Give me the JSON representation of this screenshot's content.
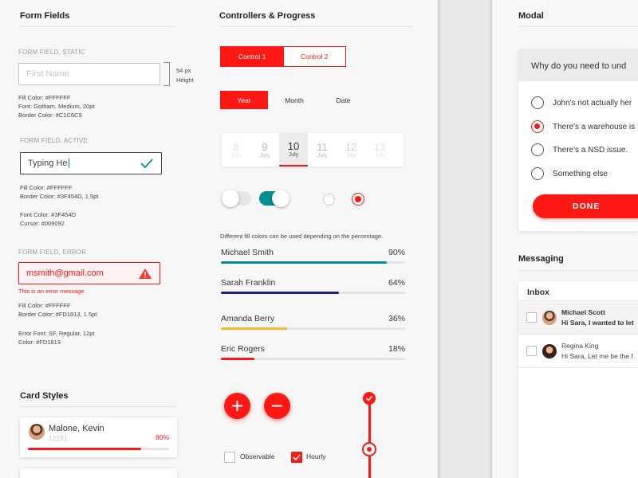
{
  "form_fields": {
    "title": "Form Fields",
    "static": {
      "caption": "FORM FIELD, STATIC",
      "placeholder": "First Name",
      "height_note": "54 px\nHeight",
      "spec": "Fill Color: #FFFFFF\nFont: Gotham, Medium, 20pt\nBorder Color: #C1C6C9"
    },
    "active": {
      "caption": "FORM FIELD, ACTIVE",
      "value": "Typing He",
      "spec1": "Fill Color: #FFFFFF\nBorder Color: #3F454D, 1.5pt",
      "spec2": "Font Color: #3F454D\nCursor: #009092"
    },
    "error": {
      "caption": "FORM FIELD, ERROR",
      "value": "msmith@gmail.com",
      "message": "This is an error message",
      "spec1": "Fill Color: #FFFFFF\nBorder Color: #FD1813, 1.5pt",
      "spec2": "Error Font: SF, Regular, 12pt\nColor: #FD1813"
    }
  },
  "card_styles": {
    "title": "Card Styles",
    "card": {
      "name": "Malone, Kevin",
      "id": "12191",
      "percent": "80%",
      "progress": 0.8
    }
  },
  "controllers": {
    "title": "Controllers & Progress",
    "segment1": [
      "Control 1",
      "Control 2"
    ],
    "segment2": [
      "Year",
      "Month",
      "Date"
    ],
    "dates": [
      {
        "num": "8",
        "mon": "July"
      },
      {
        "num": "9",
        "mon": "July"
      },
      {
        "num": "10",
        "mon": "July"
      },
      {
        "num": "11",
        "mon": "July"
      },
      {
        "num": "12",
        "mon": "July"
      },
      {
        "num": "13",
        "mon": "July"
      }
    ],
    "note": "Different fill colors can be used depending on the percentage.",
    "progress": [
      {
        "name": "Michael Smith",
        "pct": "90%",
        "value": 0.9,
        "color": "#009092"
      },
      {
        "name": "Sarah Franklin",
        "pct": "64%",
        "value": 0.64,
        "color": "#1f1f8a"
      },
      {
        "name": "Amanda Berry",
        "pct": "36%",
        "value": 0.36,
        "color": "#f7b821"
      },
      {
        "name": "Eric Rogers",
        "pct": "18%",
        "value": 0.18,
        "color": "#fd1813"
      }
    ],
    "checkboxes": [
      {
        "label": "Observable",
        "checked": false
      },
      {
        "label": "Hourly",
        "checked": true
      }
    ]
  },
  "modal": {
    "section_title": "Modal",
    "question": "Why do you need to und",
    "options": [
      {
        "label": "John's not actually her",
        "selected": false
      },
      {
        "label": "There's a warehouse is",
        "selected": true
      },
      {
        "label": "There's a NSD issue.",
        "selected": false
      },
      {
        "label": "Something else",
        "selected": false
      }
    ],
    "done": "DONE"
  },
  "messaging": {
    "section_title": "Messaging",
    "inbox": "Inbox",
    "messages": [
      {
        "sender": "Michael Scott",
        "text": "Hi Sara, I wanted to let",
        "unread": true
      },
      {
        "sender": "Regina King",
        "text": "Hi Sara, Let me be the f",
        "unread": false
      }
    ]
  },
  "colors": {
    "accent": "#fd1813",
    "teal": "#009092",
    "text": "#3f454d"
  }
}
